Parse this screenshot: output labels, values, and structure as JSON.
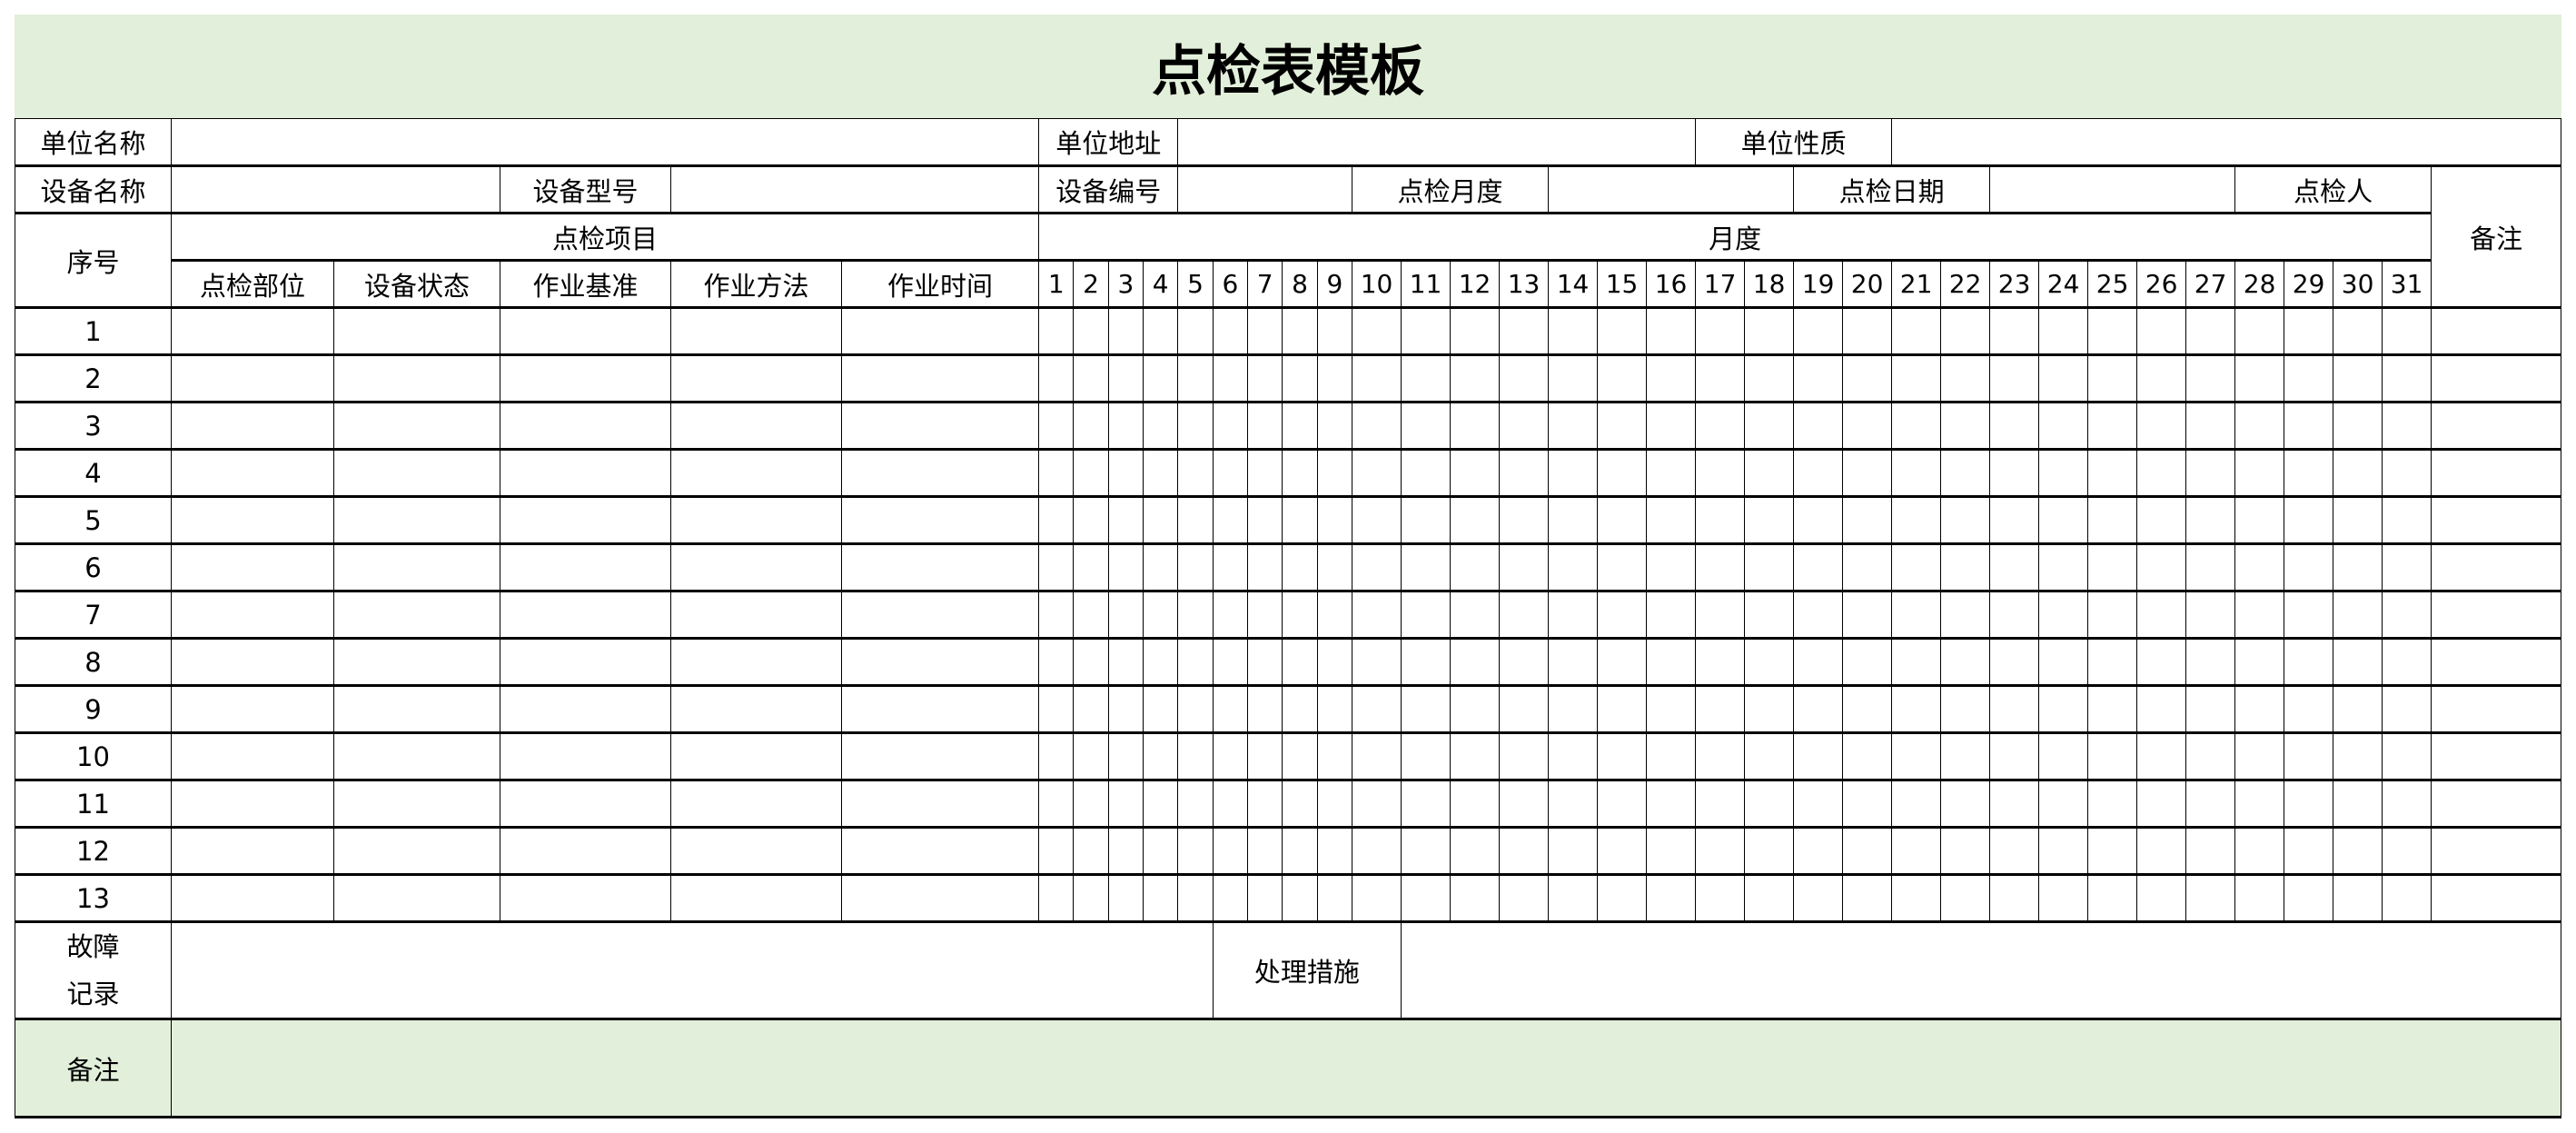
{
  "title": "点检表模板",
  "colors": {
    "header_fill": "#e2efda",
    "border": "#000000"
  },
  "info_row1": {
    "unit_name_label": "单位名称",
    "unit_name_value": "",
    "unit_address_label": "单位地址",
    "unit_address_value": "",
    "unit_nature_label": "单位性质",
    "unit_nature_value": ""
  },
  "info_row2": {
    "device_name_label": "设备名称",
    "device_name_value": "",
    "device_model_label": "设备型号",
    "device_model_value": "",
    "device_number_label": "设备编号",
    "device_number_value": "",
    "inspection_month_label": "点检月度",
    "inspection_month_value": "",
    "inspection_date_label": "点检日期",
    "inspection_date_value": "",
    "inspector_label": "点检人",
    "inspector_value": ""
  },
  "header": {
    "seq": "序号",
    "items_group": "点检项目",
    "month_group": "月度",
    "remarks": "备注",
    "item_columns": [
      "点检部位",
      "设备状态",
      "作业基准",
      "作业方法",
      "作业时间"
    ],
    "days": [
      "1",
      "2",
      "3",
      "4",
      "5",
      "6",
      "7",
      "8",
      "9",
      "10",
      "11",
      "12",
      "13",
      "14",
      "15",
      "16",
      "17",
      "18",
      "19",
      "20",
      "21",
      "22",
      "23",
      "24",
      "25",
      "26",
      "27",
      "28",
      "29",
      "30",
      "31"
    ]
  },
  "rows": [
    "1",
    "2",
    "3",
    "4",
    "5",
    "6",
    "7",
    "8",
    "9",
    "10",
    "11",
    "12",
    "13"
  ],
  "fault": {
    "label_line1": "故障",
    "label_line2": "记录",
    "value": "",
    "measures_label": "处理措施",
    "measures_value": ""
  },
  "notes": {
    "label": "备注",
    "value": ""
  }
}
